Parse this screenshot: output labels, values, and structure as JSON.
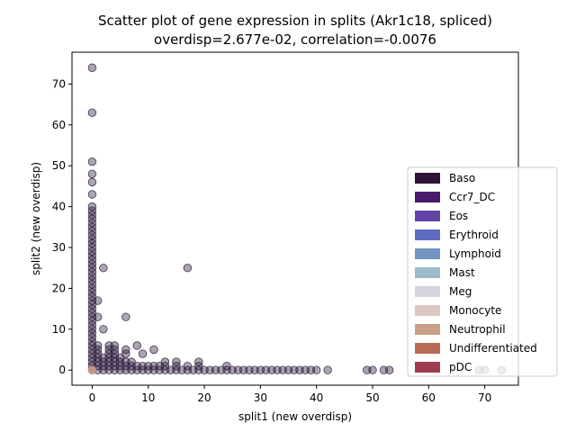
{
  "chart_data": {
    "type": "scatter",
    "title_line1": "Scatter plot of gene expression in splits (Akr1c18, spliced)",
    "title_line2": "overdisp=2.677e-02, correlation=-0.0076",
    "xlabel": "split1 (new overdisp)",
    "ylabel": "split2 (new overdisp)",
    "xlim": [
      -3.6,
      76.0
    ],
    "ylim": [
      -3.7,
      77.8
    ],
    "xticks": [
      0,
      10,
      20,
      30,
      40,
      50,
      60,
      70
    ],
    "yticks": [
      0,
      10,
      20,
      30,
      40,
      50,
      60,
      70
    ],
    "xtick_labels": [
      "0",
      "10",
      "20",
      "30",
      "40",
      "50",
      "60",
      "70"
    ],
    "ytick_labels": [
      "0",
      "10",
      "20",
      "30",
      "40",
      "50",
      "60",
      "70"
    ],
    "grid": false,
    "legend_position": "right",
    "point_color": "#2d1b3d",
    "point_opacity": 0.4,
    "highlight_color": "#c89a82",
    "legend": [
      {
        "name": "Baso",
        "color": "#2d1336"
      },
      {
        "name": "Ccr7_DC",
        "color": "#4a1a6b"
      },
      {
        "name": "Eos",
        "color": "#6244a6"
      },
      {
        "name": "Erythroid",
        "color": "#5e6bbf"
      },
      {
        "name": "Lymphoid",
        "color": "#7195c0"
      },
      {
        "name": "Mast",
        "color": "#9fbaca"
      },
      {
        "name": "Meg",
        "color": "#d6d5df"
      },
      {
        "name": "Monocyte",
        "color": "#dbc8c3"
      },
      {
        "name": "Neutrophil",
        "color": "#c9a087"
      },
      {
        "name": "Undifferentiated",
        "color": "#b86b54"
      },
      {
        "name": "pDC",
        "color": "#a13b50"
      }
    ],
    "axis_points": {
      "y_on_x0": [
        0,
        1,
        2,
        3,
        4,
        5,
        6,
        7,
        8,
        9,
        10,
        11,
        12,
        13,
        14,
        15,
        16,
        17,
        18,
        19,
        20,
        21,
        22,
        23,
        24,
        25,
        26,
        27,
        28,
        29,
        30,
        31,
        32,
        33,
        34,
        35,
        36,
        37,
        38,
        39,
        40,
        43,
        46,
        48,
        51,
        63,
        74
      ],
      "x_on_y0": [
        1,
        2,
        3,
        4,
        5,
        6,
        7,
        8,
        9,
        10,
        11,
        12,
        13,
        14,
        15,
        16,
        17,
        18,
        19,
        20,
        21,
        22,
        23,
        24,
        25,
        26,
        27,
        28,
        29,
        30,
        31,
        32,
        33,
        34,
        35,
        36,
        37,
        38,
        39,
        40,
        42,
        49,
        50,
        52,
        53,
        69,
        70,
        73
      ]
    },
    "points": [
      [
        1,
        1
      ],
      [
        1,
        2
      ],
      [
        1,
        3
      ],
      [
        1,
        4
      ],
      [
        1,
        5
      ],
      [
        1,
        6
      ],
      [
        1,
        13
      ],
      [
        1,
        17
      ],
      [
        2,
        1
      ],
      [
        2,
        2
      ],
      [
        2,
        3
      ],
      [
        2,
        10
      ],
      [
        2,
        25
      ],
      [
        3,
        1
      ],
      [
        3,
        2
      ],
      [
        3,
        3
      ],
      [
        3,
        4
      ],
      [
        3,
        5
      ],
      [
        3,
        6
      ],
      [
        4,
        1
      ],
      [
        4,
        2
      ],
      [
        4,
        3
      ],
      [
        4,
        4
      ],
      [
        4,
        5
      ],
      [
        4,
        6
      ],
      [
        5,
        1
      ],
      [
        5,
        2
      ],
      [
        5,
        3
      ],
      [
        6,
        1
      ],
      [
        6,
        2
      ],
      [
        6,
        4
      ],
      [
        6,
        5
      ],
      [
        6,
        13
      ],
      [
        7,
        1
      ],
      [
        7,
        2
      ],
      [
        8,
        1
      ],
      [
        8,
        6
      ],
      [
        9,
        1
      ],
      [
        9,
        4
      ],
      [
        10,
        1
      ],
      [
        11,
        1
      ],
      [
        11,
        5
      ],
      [
        12,
        1
      ],
      [
        13,
        1
      ],
      [
        13,
        2
      ],
      [
        15,
        1
      ],
      [
        15,
        2
      ],
      [
        17,
        1
      ],
      [
        17,
        25
      ],
      [
        19,
        1
      ],
      [
        19,
        2
      ],
      [
        24,
        1
      ]
    ],
    "highlight_points": [
      [
        0,
        0
      ]
    ]
  }
}
